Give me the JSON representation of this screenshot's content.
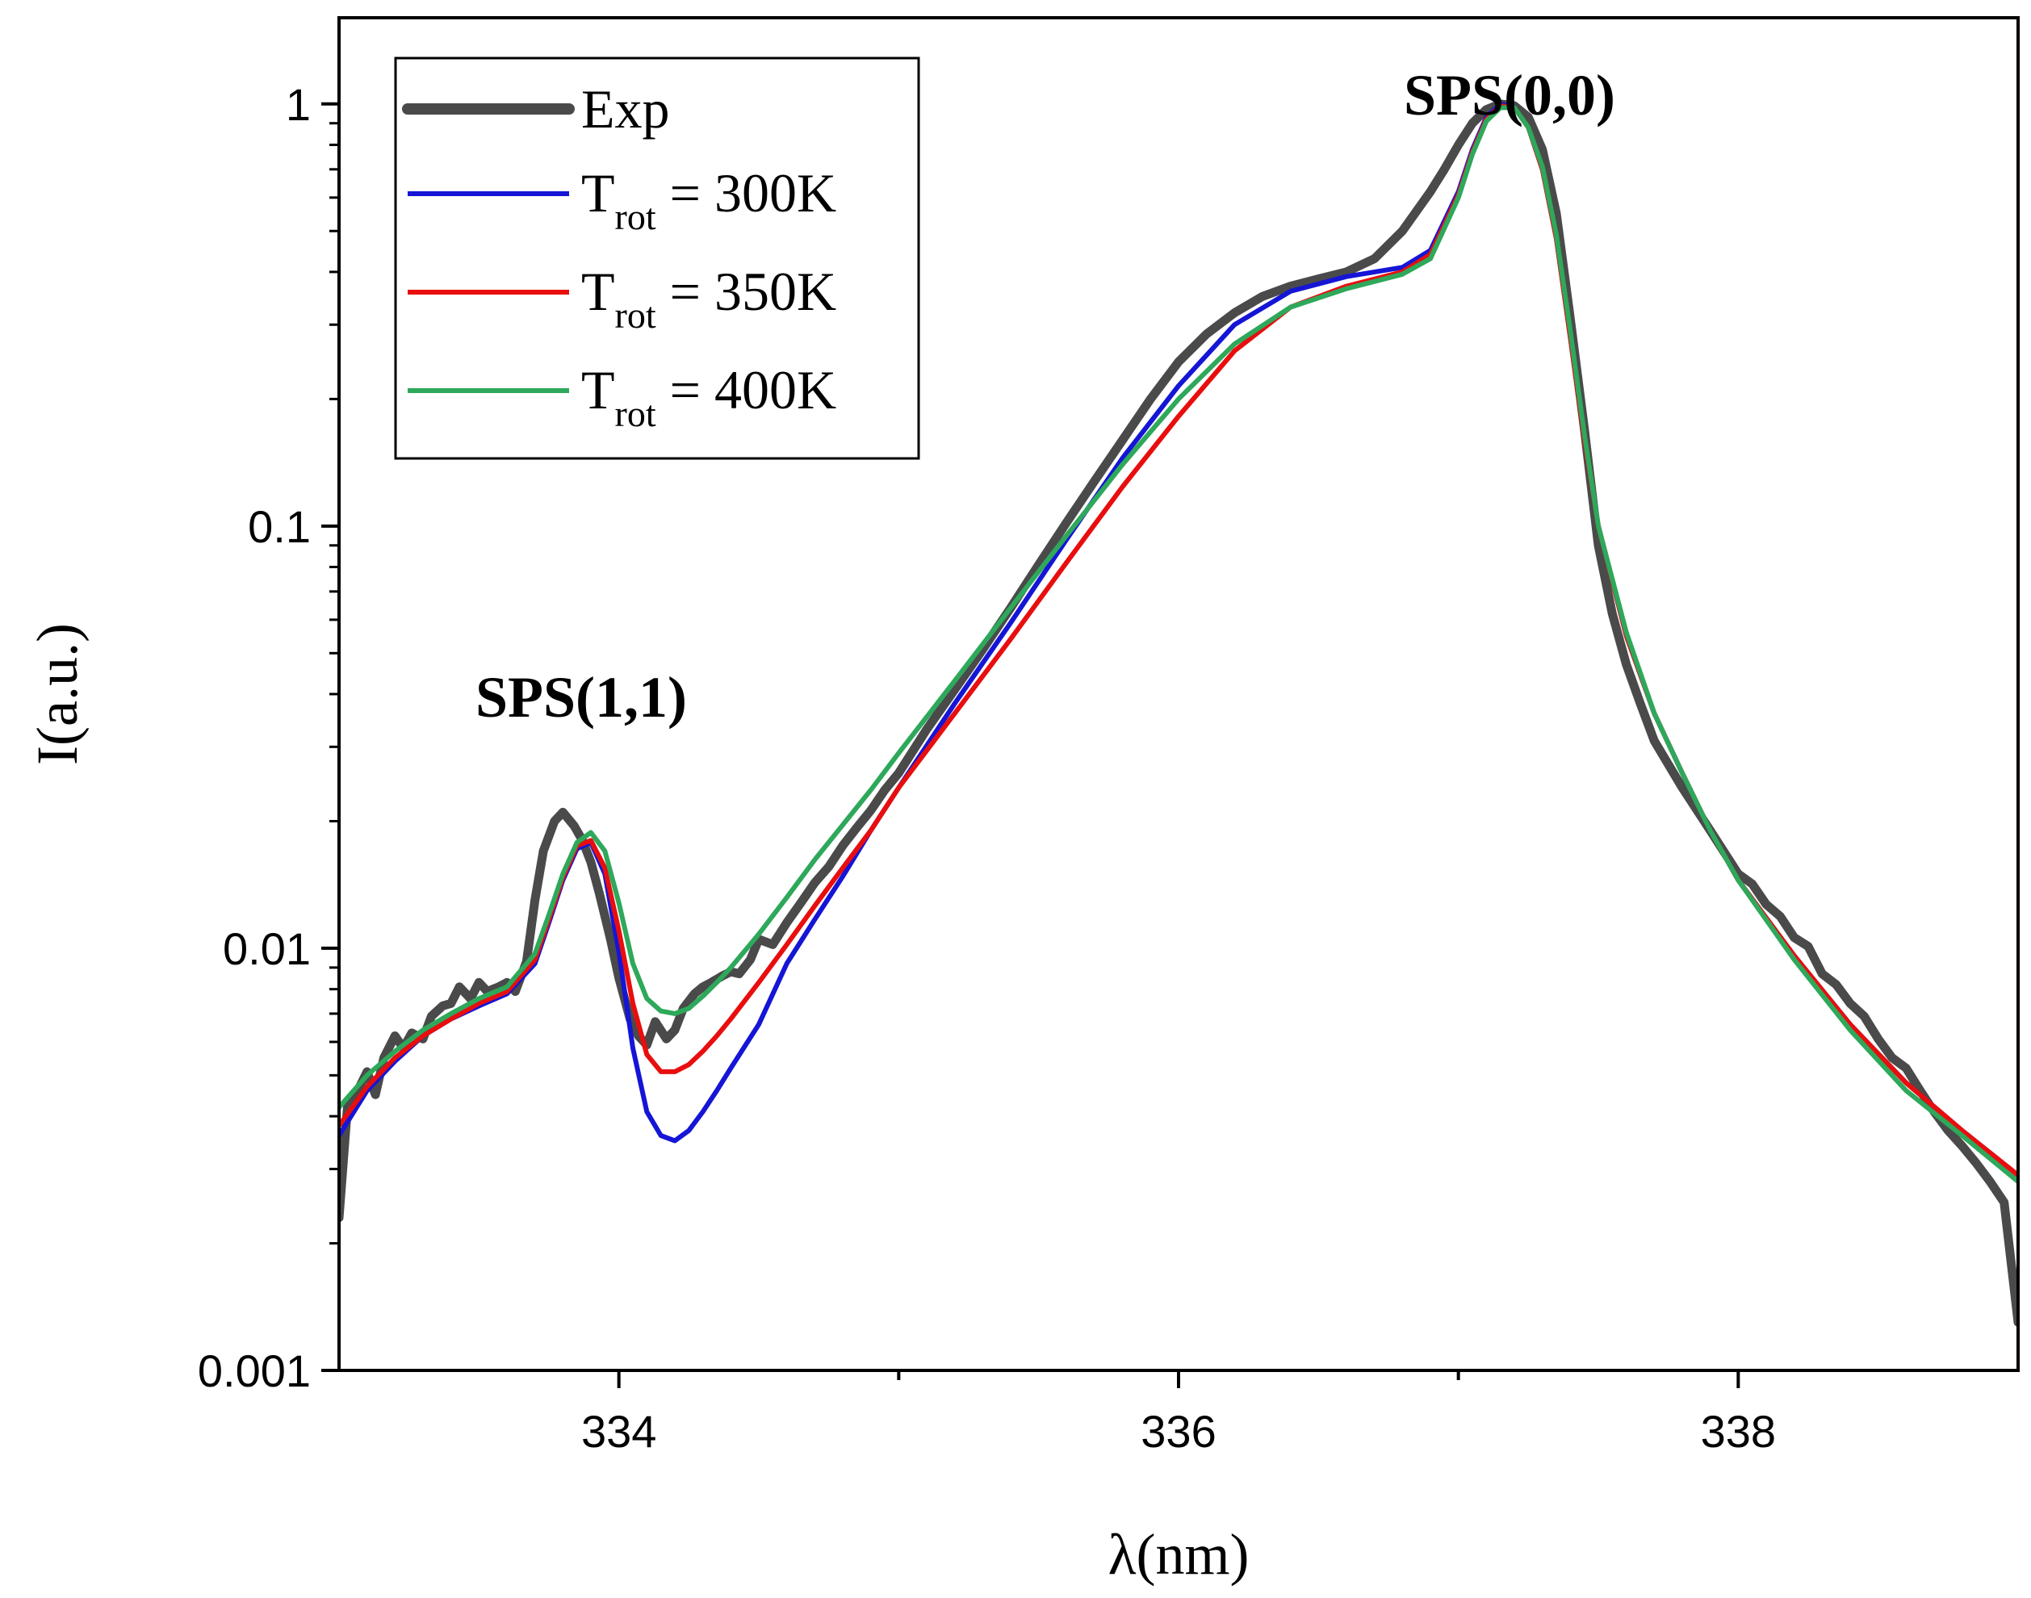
{
  "chart_data": {
    "type": "line",
    "title": "",
    "xlabel": "λ(nm)",
    "ylabel": "I(a.u.)",
    "xlim": [
      333,
      339
    ],
    "ylim": [
      0.001,
      1.6
    ],
    "yscale": "log",
    "x_ticks": [
      334,
      336,
      338
    ],
    "x_tick_labels": [
      "334",
      "336",
      "338"
    ],
    "x_minor_ticks": [
      335,
      337
    ],
    "y_ticks": [
      0.001,
      0.01,
      0.1,
      1
    ],
    "y_tick_labels": [
      "0.001",
      "0.01",
      "0.1",
      "1"
    ],
    "legend": {
      "position": "top-left",
      "entries": [
        {
          "label": "Exp",
          "main": "Exp",
          "sub": "",
          "rest": ""
        },
        {
          "label": "T_rot = 300K",
          "main": "T",
          "sub": "rot",
          "rest": " = 300K"
        },
        {
          "label": "T_rot = 350K",
          "main": "T",
          "sub": "rot",
          "rest": " = 350K"
        },
        {
          "label": "T_rot = 400K",
          "main": "T",
          "sub": "rot",
          "rest": " = 400K"
        }
      ]
    },
    "annotations": [
      {
        "text": "SPS(0,0)",
        "x": 337.2,
        "y": 1.0
      },
      {
        "text": "SPS(1,1)",
        "x": 333.9,
        "y": 0.021
      }
    ],
    "series": [
      {
        "name": "Exp",
        "color": "#4a4a4a",
        "x": [
          333.0,
          333.03,
          333.06,
          333.1,
          333.13,
          333.16,
          333.2,
          333.23,
          333.26,
          333.3,
          333.33,
          333.37,
          333.4,
          333.43,
          333.47,
          333.5,
          333.53,
          333.57,
          333.6,
          333.63,
          333.67,
          333.7,
          333.73,
          333.77,
          333.8,
          333.84,
          333.87,
          333.9,
          333.93,
          333.97,
          334.0,
          334.04,
          334.07,
          334.1,
          334.13,
          334.17,
          334.2,
          334.23,
          334.27,
          334.3,
          334.33,
          334.37,
          334.4,
          334.43,
          334.47,
          334.5,
          334.55,
          334.6,
          334.65,
          334.7,
          334.75,
          334.8,
          334.85,
          334.9,
          334.95,
          335.0,
          335.1,
          335.2,
          335.3,
          335.4,
          335.5,
          335.6,
          335.7,
          335.8,
          335.9,
          336.0,
          336.1,
          336.2,
          336.3,
          336.4,
          336.5,
          336.6,
          336.7,
          336.8,
          336.9,
          336.95,
          337.0,
          337.05,
          337.1,
          337.15,
          337.2,
          337.25,
          337.3,
          337.35,
          337.4,
          337.45,
          337.5,
          337.55,
          337.6,
          337.65,
          337.7,
          337.8,
          337.9,
          338.0,
          338.05,
          338.1,
          338.15,
          338.2,
          338.25,
          338.3,
          338.35,
          338.4,
          338.45,
          338.5,
          338.55,
          338.6,
          338.65,
          338.7,
          338.75,
          338.8,
          338.85,
          338.9,
          338.95,
          339.0
        ],
        "y": [
          0.0023,
          0.0042,
          0.0045,
          0.0051,
          0.0045,
          0.0055,
          0.0062,
          0.0058,
          0.0063,
          0.0061,
          0.0069,
          0.0073,
          0.0074,
          0.0081,
          0.0076,
          0.0083,
          0.0079,
          0.0081,
          0.0083,
          0.0079,
          0.0093,
          0.013,
          0.017,
          0.02,
          0.021,
          0.0195,
          0.018,
          0.016,
          0.0135,
          0.0105,
          0.0085,
          0.0068,
          0.0062,
          0.0059,
          0.0067,
          0.0061,
          0.0064,
          0.0072,
          0.0078,
          0.0081,
          0.0083,
          0.0086,
          0.0088,
          0.0087,
          0.0094,
          0.0105,
          0.0102,
          0.0115,
          0.0128,
          0.0143,
          0.0156,
          0.0175,
          0.0193,
          0.0212,
          0.0237,
          0.026,
          0.033,
          0.041,
          0.051,
          0.064,
          0.081,
          0.102,
          0.128,
          0.16,
          0.2,
          0.245,
          0.285,
          0.32,
          0.35,
          0.37,
          0.385,
          0.4,
          0.43,
          0.5,
          0.62,
          0.7,
          0.8,
          0.9,
          0.97,
          1.0,
          0.99,
          0.93,
          0.78,
          0.55,
          0.31,
          0.17,
          0.09,
          0.062,
          0.047,
          0.038,
          0.031,
          0.024,
          0.019,
          0.015,
          0.0142,
          0.0127,
          0.0119,
          0.0106,
          0.0101,
          0.0087,
          0.0082,
          0.0074,
          0.0069,
          0.0061,
          0.0055,
          0.0052,
          0.0046,
          0.0041,
          0.0037,
          0.0034,
          0.0031,
          0.0028,
          0.0025,
          0.0013
        ]
      },
      {
        "name": "T_rot = 300K",
        "color": "#1515d6",
        "x": [
          333.0,
          333.1,
          333.2,
          333.3,
          333.4,
          333.5,
          333.6,
          333.7,
          333.75,
          333.8,
          333.85,
          333.9,
          333.95,
          334.0,
          334.05,
          334.1,
          334.15,
          334.2,
          334.25,
          334.3,
          334.35,
          334.4,
          334.5,
          334.6,
          334.7,
          334.8,
          334.9,
          335.0,
          335.2,
          335.4,
          335.6,
          335.8,
          336.0,
          336.2,
          336.4,
          336.6,
          336.8,
          336.9,
          337.0,
          337.05,
          337.1,
          337.15,
          337.2,
          337.25,
          337.3,
          337.35,
          337.4,
          337.45,
          337.5,
          337.6,
          337.7,
          337.8,
          337.9,
          338.0,
          338.2,
          338.4,
          338.6,
          338.8,
          339.0
        ],
        "y": [
          0.0036,
          0.0046,
          0.0054,
          0.0062,
          0.0068,
          0.0073,
          0.0078,
          0.0092,
          0.0115,
          0.0145,
          0.0172,
          0.0178,
          0.015,
          0.0098,
          0.0058,
          0.0041,
          0.0036,
          0.0035,
          0.0037,
          0.0041,
          0.0046,
          0.0052,
          0.0066,
          0.0092,
          0.0117,
          0.0148,
          0.019,
          0.024,
          0.038,
          0.059,
          0.093,
          0.145,
          0.215,
          0.3,
          0.36,
          0.39,
          0.41,
          0.45,
          0.62,
          0.78,
          0.93,
          1.0,
          0.98,
          0.88,
          0.7,
          0.48,
          0.28,
          0.16,
          0.1,
          0.055,
          0.036,
          0.026,
          0.019,
          0.0145,
          0.0096,
          0.0066,
          0.0048,
          0.0037,
          0.0029
        ]
      },
      {
        "name": "T_rot = 350K",
        "color": "#e80e0e",
        "x": [
          333.0,
          333.1,
          333.2,
          333.3,
          333.4,
          333.5,
          333.6,
          333.7,
          333.75,
          333.8,
          333.85,
          333.9,
          333.95,
          334.0,
          334.05,
          334.1,
          334.15,
          334.2,
          334.25,
          334.3,
          334.35,
          334.4,
          334.5,
          334.6,
          334.7,
          334.8,
          334.9,
          335.0,
          335.2,
          335.4,
          335.6,
          335.8,
          336.0,
          336.2,
          336.4,
          336.6,
          336.8,
          336.9,
          337.0,
          337.05,
          337.1,
          337.15,
          337.2,
          337.25,
          337.3,
          337.35,
          337.4,
          337.45,
          337.5,
          337.6,
          337.7,
          337.8,
          337.9,
          338.0,
          338.2,
          338.4,
          338.6,
          338.8,
          339.0
        ],
        "y": [
          0.0038,
          0.0047,
          0.0055,
          0.0062,
          0.0068,
          0.0074,
          0.0079,
          0.0094,
          0.0117,
          0.0147,
          0.0175,
          0.018,
          0.0155,
          0.011,
          0.0074,
          0.0056,
          0.0051,
          0.0051,
          0.0053,
          0.0057,
          0.0062,
          0.0068,
          0.0083,
          0.0102,
          0.0126,
          0.0155,
          0.019,
          0.024,
          0.036,
          0.054,
          0.082,
          0.124,
          0.182,
          0.26,
          0.33,
          0.37,
          0.4,
          0.44,
          0.61,
          0.77,
          0.92,
          0.99,
          0.98,
          0.88,
          0.7,
          0.48,
          0.28,
          0.16,
          0.1,
          0.055,
          0.036,
          0.026,
          0.019,
          0.0145,
          0.0096,
          0.0066,
          0.0048,
          0.0037,
          0.0029
        ]
      },
      {
        "name": "T_rot = 400K",
        "color": "#2ea85a",
        "x": [
          333.0,
          333.1,
          333.2,
          333.3,
          333.4,
          333.5,
          333.6,
          333.7,
          333.75,
          333.8,
          333.85,
          333.9,
          333.95,
          334.0,
          334.05,
          334.1,
          334.15,
          334.2,
          334.25,
          334.3,
          334.35,
          334.4,
          334.5,
          334.6,
          334.7,
          334.8,
          334.9,
          335.0,
          335.2,
          335.4,
          335.6,
          335.8,
          336.0,
          336.2,
          336.4,
          336.6,
          336.8,
          336.9,
          337.0,
          337.05,
          337.1,
          337.15,
          337.2,
          337.25,
          337.3,
          337.35,
          337.4,
          337.45,
          337.5,
          337.6,
          337.7,
          337.8,
          337.9,
          338.0,
          338.2,
          338.4,
          338.6,
          338.8,
          339.0
        ],
        "y": [
          0.0042,
          0.005,
          0.0057,
          0.0064,
          0.007,
          0.0076,
          0.0081,
          0.0097,
          0.012,
          0.015,
          0.0178,
          0.0188,
          0.017,
          0.0128,
          0.0092,
          0.0076,
          0.0071,
          0.007,
          0.0072,
          0.0077,
          0.0083,
          0.009,
          0.0108,
          0.0132,
          0.0162,
          0.0196,
          0.0237,
          0.029,
          0.043,
          0.064,
          0.095,
          0.14,
          0.2,
          0.27,
          0.33,
          0.365,
          0.395,
          0.43,
          0.6,
          0.76,
          0.91,
          0.98,
          0.98,
          0.88,
          0.71,
          0.49,
          0.29,
          0.165,
          0.1,
          0.056,
          0.036,
          0.026,
          0.019,
          0.0145,
          0.0094,
          0.0064,
          0.0046,
          0.0036,
          0.0028
        ]
      }
    ]
  }
}
